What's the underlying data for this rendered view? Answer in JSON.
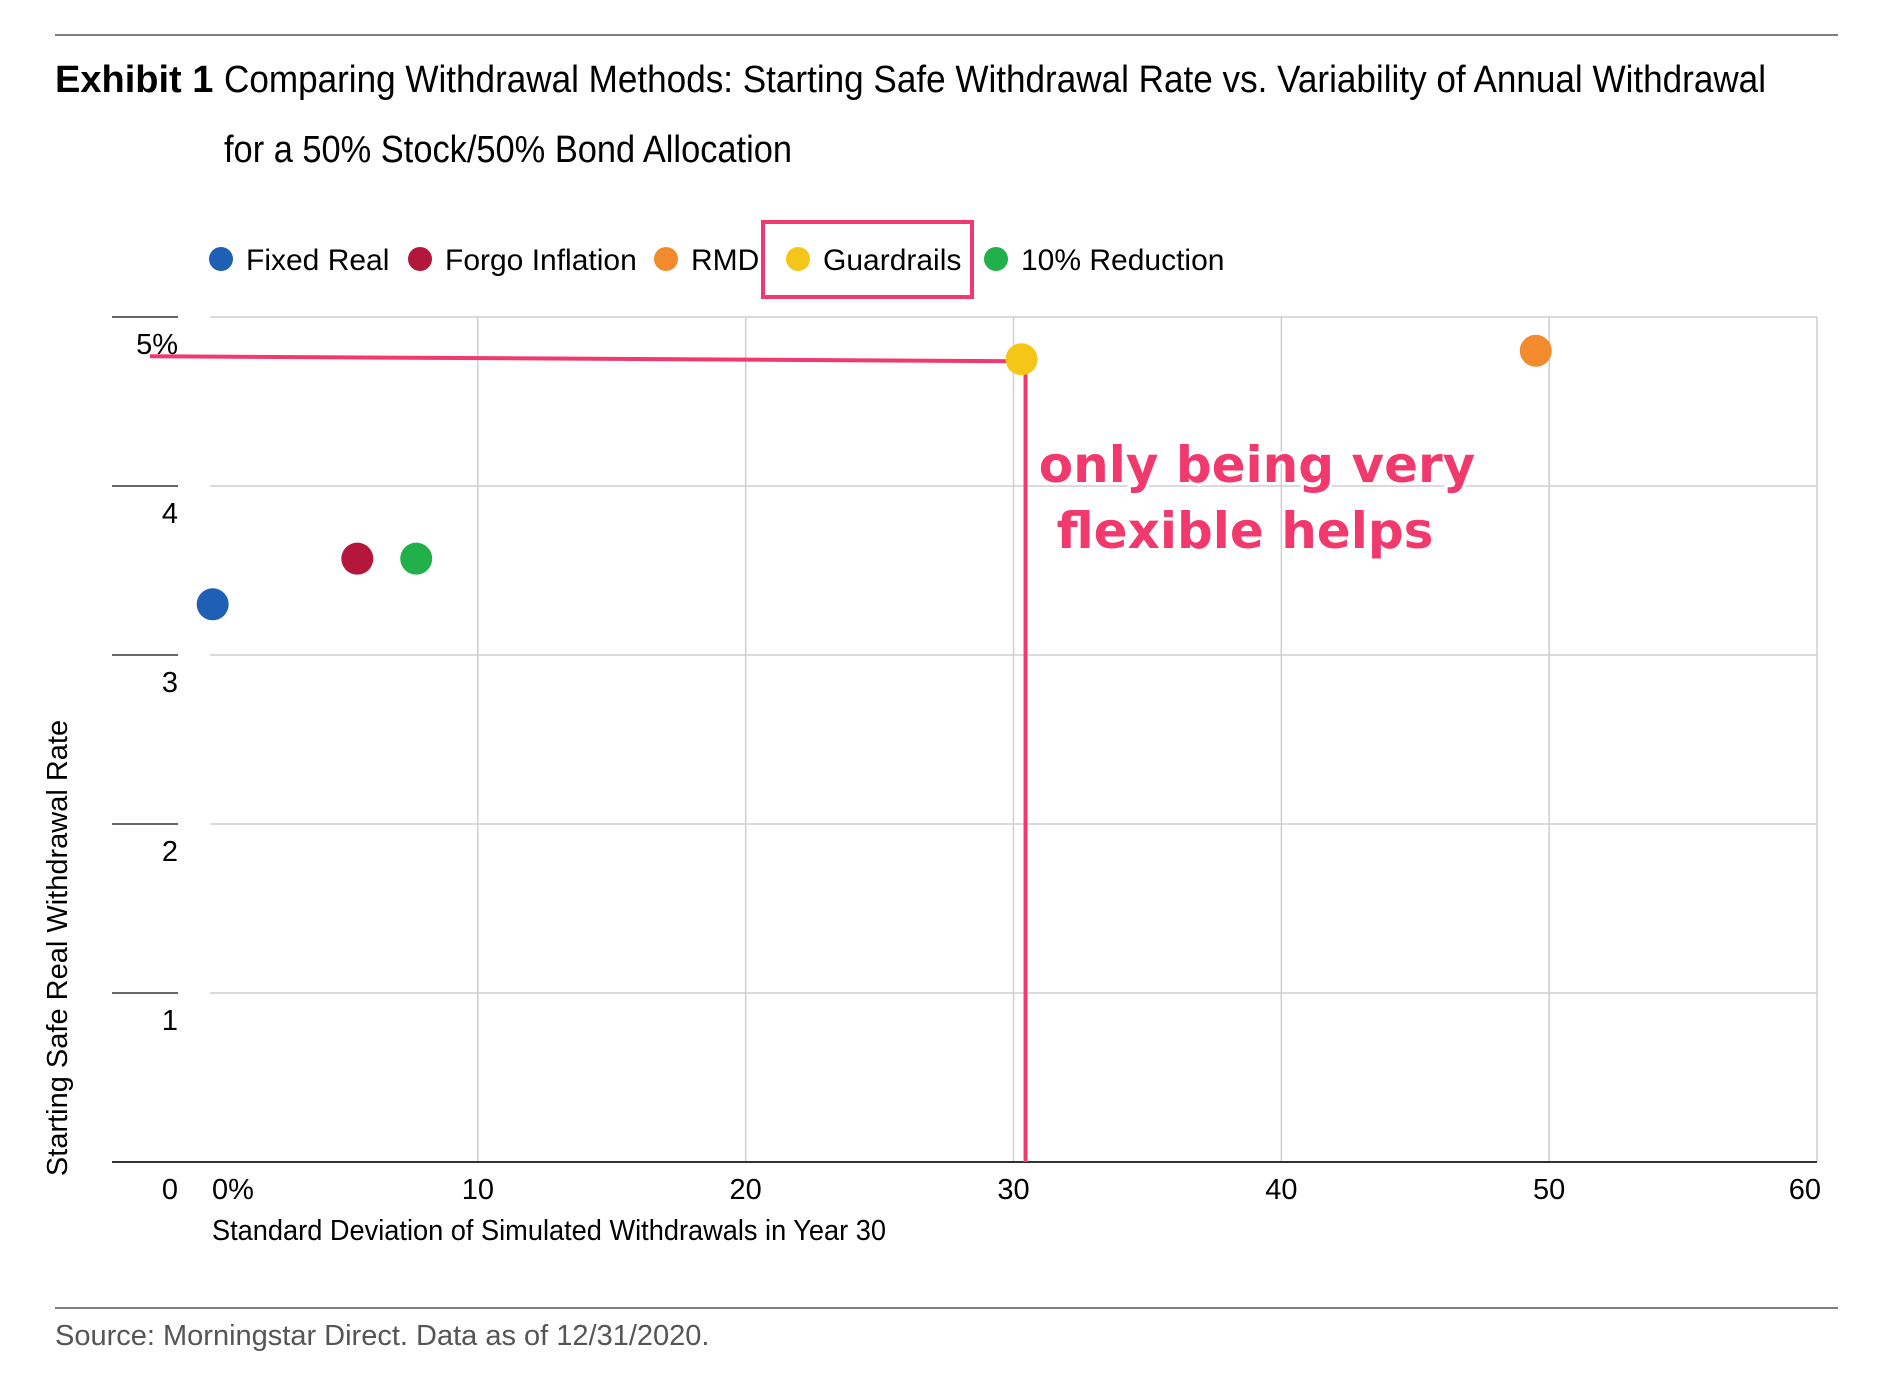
{
  "exhibit_label": "Exhibit 1",
  "title_line1": "Comparing Withdrawal Methods: Starting Safe Withdrawal Rate vs. Variability of Annual Withdrawal",
  "title_line2": "for a 50% Stock/50% Bond Allocation",
  "source": "Source: Morningstar Direct. Data as of 12/31/2020.",
  "annotation": {
    "line1": "only being very",
    "line2": "flexible helps",
    "color": "#f1396d",
    "highlighted_legend": "Guardrails",
    "reference_point": {
      "x": 30.3,
      "y": 4.75
    }
  },
  "chart_data": {
    "type": "scatter",
    "title": "Comparing Withdrawal Methods: Starting Safe Withdrawal Rate vs. Variability of Annual Withdrawal for a 50% Stock/50% Bond Allocation",
    "xlabel": "Standard Deviation of Simulated Withdrawals in Year 30",
    "ylabel": "Starting Safe Real Withdrawal Rate",
    "xlim": [
      0,
      60
    ],
    "ylim": [
      0,
      5
    ],
    "xticks": [
      0,
      10,
      20,
      30,
      40,
      50,
      60
    ],
    "xtick_labels": [
      "0%",
      "10",
      "20",
      "30",
      "40",
      "50",
      "60"
    ],
    "yticks": [
      0,
      1,
      2,
      3,
      4,
      5
    ],
    "ytick_labels": [
      "0",
      "1",
      "2",
      "3",
      "4",
      "5%"
    ],
    "grid": true,
    "legend_position": "top-left",
    "series": [
      {
        "name": "Fixed Real",
        "color": "#1f5fb4",
        "x": 0.1,
        "y": 3.3
      },
      {
        "name": "Forgo Inflation",
        "color": "#b5173c",
        "x": 5.5,
        "y": 3.57
      },
      {
        "name": "RMD",
        "color": "#f28a2e",
        "x": 49.5,
        "y": 4.8
      },
      {
        "name": "Guardrails",
        "color": "#f5c518",
        "x": 30.3,
        "y": 4.75
      },
      {
        "name": "10% Reduction",
        "color": "#22b04b",
        "x": 7.7,
        "y": 3.57
      }
    ]
  }
}
